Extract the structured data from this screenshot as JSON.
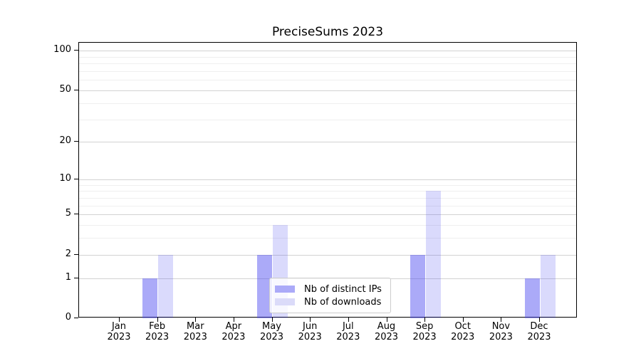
{
  "chart_data": {
    "type": "bar",
    "title": "PreciseSums 2023",
    "scale": "log1p",
    "categories": [
      "Jan",
      "Feb",
      "Mar",
      "Apr",
      "May",
      "Jun",
      "Jul",
      "Aug",
      "Sep",
      "Oct",
      "Nov",
      "Dec"
    ],
    "category_year": "2023",
    "series": [
      {
        "name": "Nb of distinct IPs",
        "values": [
          0,
          1,
          0,
          0,
          2,
          0,
          0,
          0,
          2,
          0,
          0,
          1
        ],
        "bar_color": "rgba(80,78,240,0.48)",
        "legend_color": "#abaaf8"
      },
      {
        "name": "Nb of downloads",
        "values": [
          0,
          2,
          0,
          0,
          4,
          0,
          0,
          0,
          8,
          0,
          0,
          2
        ],
        "bar_color": "rgba(80,78,240,0.21)",
        "legend_color": "#dbdbf9"
      }
    ],
    "y_major_ticks": [
      0,
      1,
      2,
      5,
      10,
      20,
      50,
      100
    ],
    "y_minor_ticks": [
      3,
      4,
      6,
      7,
      8,
      9,
      30,
      40,
      60,
      70,
      80,
      90
    ],
    "ylim": [
      0,
      115
    ],
    "xlabel": "",
    "ylabel": "",
    "grid": true,
    "legend_position": "lower center"
  },
  "colors": {
    "major_grid": "#d2d2d2",
    "minor_grid": "#efefef",
    "axis": "#000000",
    "legend_border": "#cccccc",
    "legend_background": "rgba(255,255,255,0.8)"
  }
}
